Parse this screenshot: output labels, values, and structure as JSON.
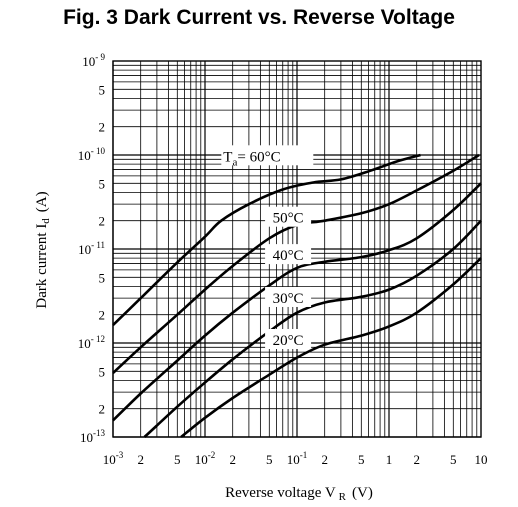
{
  "chart_data": {
    "type": "line",
    "title": "Fig. 3  Dark Current vs. Reverse Voltage",
    "xlabel": "Reverse voltage V",
    "xlabel_sub": "R",
    "xlabel_unit": "(V)",
    "ylabel": "Dark current I",
    "ylabel_sub": "d",
    "ylabel_unit": "(A)",
    "x_scale": "log",
    "y_scale": "log",
    "xlim": [
      0.001,
      10
    ],
    "ylim": [
      1e-13,
      1e-09
    ],
    "grid": true,
    "x_ticks": [
      {
        "v": 0.001,
        "base": "10",
        "exp": "-3"
      },
      {
        "v": 0.002,
        "text": "2"
      },
      {
        "v": 0.005,
        "text": "5"
      },
      {
        "v": 0.01,
        "base": "10",
        "exp": "-2"
      },
      {
        "v": 0.02,
        "text": "2"
      },
      {
        "v": 0.05,
        "text": "5"
      },
      {
        "v": 0.1,
        "base": "10",
        "exp": "-1"
      },
      {
        "v": 0.2,
        "text": "2"
      },
      {
        "v": 0.5,
        "text": "5"
      },
      {
        "v": 1,
        "text": "1"
      },
      {
        "v": 2,
        "text": "2"
      },
      {
        "v": 5,
        "text": "5"
      },
      {
        "v": 10,
        "text": "10"
      }
    ],
    "y_ticks": [
      {
        "v": 1e-09,
        "base": "10",
        "exp": "- 9"
      },
      {
        "v": 5e-10,
        "text": "5"
      },
      {
        "v": 2e-10,
        "text": "2"
      },
      {
        "v": 1e-10,
        "base": "10",
        "exp": "- 10"
      },
      {
        "v": 5e-11,
        "text": "5"
      },
      {
        "v": 2e-11,
        "text": "2"
      },
      {
        "v": 1e-11,
        "base": "10",
        "exp": "- 11"
      },
      {
        "v": 5e-12,
        "text": "5"
      },
      {
        "v": 2e-12,
        "text": "2"
      },
      {
        "v": 1e-12,
        "base": "10",
        "exp": "- 12"
      },
      {
        "v": 5e-13,
        "text": "5"
      },
      {
        "v": 2e-13,
        "text": "2"
      },
      {
        "v": 1e-13,
        "base": "10",
        "exp": "-13"
      }
    ],
    "series": [
      {
        "name": "60°C",
        "label_prefix": "T",
        "label_sub": "a",
        "label_eq": "= ",
        "label_x": 0.05,
        "label_y": 9e-11,
        "x": [
          0.001,
          0.002,
          0.005,
          0.01,
          0.015,
          0.03,
          0.07,
          0.15,
          0.3,
          0.6,
          1.2,
          2.2
        ],
        "y": [
          1.55e-12,
          3e-12,
          7.2e-12,
          1.35e-11,
          2e-11,
          3e-11,
          4.3e-11,
          5.1e-11,
          5.5e-11,
          6.7e-11,
          8.5e-11,
          1e-10
        ]
      },
      {
        "name": "50°C",
        "label_x": 0.08,
        "label_y": 2e-11,
        "x": [
          0.001,
          0.002,
          0.005,
          0.01,
          0.02,
          0.05,
          0.1,
          0.2,
          0.5,
          1,
          2,
          5,
          9.5
        ],
        "y": [
          4.8e-13,
          9e-13,
          2e-12,
          3.7e-12,
          6.6e-12,
          1.3e-11,
          1.8e-11,
          2e-11,
          2.4e-11,
          3e-11,
          4.2e-11,
          6.8e-11,
          1e-10
        ]
      },
      {
        "name": "40°C",
        "label_x": 0.08,
        "label_y": 8e-12,
        "x": [
          0.001,
          0.002,
          0.005,
          0.01,
          0.02,
          0.05,
          0.1,
          0.2,
          0.5,
          1,
          2,
          5,
          10
        ],
        "y": [
          1.5e-13,
          2.9e-13,
          6.5e-13,
          1.2e-12,
          2.1e-12,
          4.1e-12,
          6.3e-12,
          7.3e-12,
          8.2e-12,
          9.7e-12,
          1.3e-11,
          2.6e-11,
          5e-11
        ]
      },
      {
        "name": "30°C",
        "label_x": 0.08,
        "label_y": 2.8e-12,
        "x": [
          0.0022,
          0.005,
          0.01,
          0.02,
          0.05,
          0.1,
          0.2,
          0.5,
          1,
          2,
          5,
          10
        ],
        "y": [
          1e-13,
          2.1e-13,
          3.8e-13,
          6.7e-13,
          1.33e-12,
          2.1e-12,
          2.7e-12,
          3.1e-12,
          3.7e-12,
          5.2e-12,
          1e-11,
          2e-11
        ]
      },
      {
        "name": "20°C",
        "label_x": 0.08,
        "label_y": 1e-12,
        "x": [
          0.0055,
          0.01,
          0.02,
          0.05,
          0.1,
          0.2,
          0.5,
          1,
          2,
          5,
          10
        ],
        "y": [
          1e-13,
          1.6e-13,
          2.6e-13,
          4.6e-13,
          7e-13,
          9.6e-13,
          1.2e-12,
          1.5e-12,
          2.1e-12,
          4.2e-12,
          8e-12
        ]
      }
    ]
  }
}
